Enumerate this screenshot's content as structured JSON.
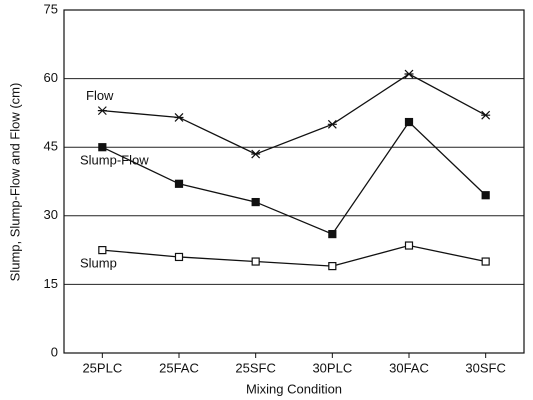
{
  "chart_data": {
    "type": "line",
    "x_label": "Mixing Condition",
    "y_label": "Slump, Slump-Flow and Flow (cm)",
    "categories": [
      "25PLC",
      "25FAC",
      "25SFC",
      "30PLC",
      "30FAC",
      "30SFC"
    ],
    "series": [
      {
        "name": "Flow",
        "color": "#111111",
        "marker": "star",
        "values": [
          53,
          51.5,
          43.5,
          50,
          61,
          52
        ]
      },
      {
        "name": "Slump-Flow",
        "color": "#111111",
        "marker": "filled-square",
        "values": [
          45,
          37,
          33,
          26,
          50.5,
          34.5
        ]
      },
      {
        "name": "Slump",
        "color": "#111111",
        "marker": "open-square",
        "values": [
          22.5,
          21,
          20,
          19,
          23.5,
          20
        ]
      }
    ],
    "ylim": [
      0,
      75
    ],
    "yticks": [
      0,
      15,
      30,
      45,
      60,
      75
    ],
    "grid": true
  }
}
